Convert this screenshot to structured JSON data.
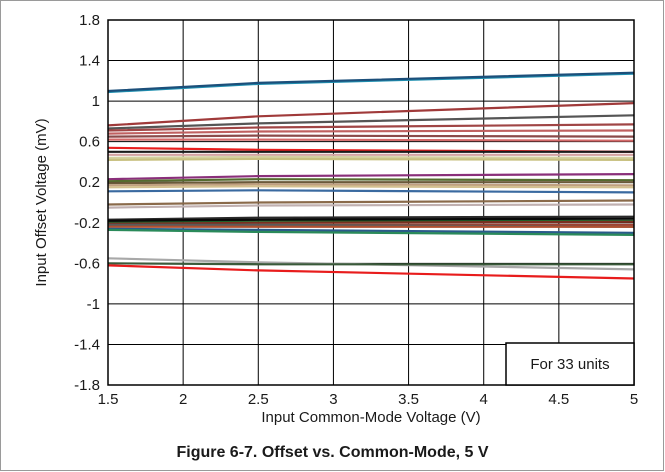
{
  "figure": {
    "caption": "Figure 6-7. Offset vs. Common-Mode, 5 V"
  },
  "chart_data": {
    "type": "line",
    "title": "",
    "xlabel": "Input Common-Mode Voltage (V)",
    "ylabel": "Input Offset Voltage (mV)",
    "xlim": [
      1.5,
      5
    ],
    "ylim": [
      -1.8,
      1.8
    ],
    "x_ticks": [
      1.5,
      2,
      2.5,
      3,
      3.5,
      4,
      4.5,
      5
    ],
    "x_tick_labels": [
      "1.5",
      "2",
      "2.5",
      "3",
      "3.5",
      "4",
      "4.5",
      "5"
    ],
    "y_ticks": [
      1.8,
      1.4,
      1,
      0.6,
      0.2,
      -0.2,
      -0.6,
      -1,
      -1.4,
      -1.8
    ],
    "y_tick_labels": [
      "1.8",
      "1.4",
      "1",
      "0.6",
      "0.2",
      "-0.2",
      "-0.6",
      "-1",
      "-1.4",
      "-1.8"
    ],
    "grid": true,
    "legend": "none",
    "annotation": {
      "text": "For 33 units",
      "placement": "bottom-right"
    },
    "x": [
      1.5,
      2.5,
      5
    ],
    "series": [
      {
        "color": "#1f8fb0",
        "values": [
          1.09,
          1.17,
          1.27
        ]
      },
      {
        "color": "#1c4f7a",
        "values": [
          1.1,
          1.18,
          1.28
        ]
      },
      {
        "color": "#a03a3a",
        "values": [
          0.76,
          0.85,
          0.98
        ]
      },
      {
        "color": "#555555",
        "values": [
          0.73,
          0.78,
          0.86
        ]
      },
      {
        "color": "#a04545",
        "values": [
          0.71,
          0.74,
          0.77
        ]
      },
      {
        "color": "#c06060",
        "values": [
          0.68,
          0.7,
          0.71
        ]
      },
      {
        "color": "#8b4a4a",
        "values": [
          0.65,
          0.66,
          0.65
        ]
      },
      {
        "color": "#d46a6a",
        "values": [
          0.62,
          0.62,
          0.61
        ]
      },
      {
        "color": "#e81c1c",
        "values": [
          0.54,
          0.52,
          0.5
        ]
      },
      {
        "color": "#1a1a1a",
        "values": [
          0.5,
          0.5,
          0.5
        ]
      },
      {
        "color": "#d4a3a3",
        "values": [
          0.47,
          0.47,
          0.47
        ]
      },
      {
        "color": "#d4d0a0",
        "values": [
          0.44,
          0.45,
          0.44
        ]
      },
      {
        "color": "#c8c080",
        "values": [
          0.42,
          0.43,
          0.42
        ]
      },
      {
        "color": "#8a2f7a",
        "values": [
          0.23,
          0.26,
          0.28
        ]
      },
      {
        "color": "#556b2f",
        "values": [
          0.21,
          0.23,
          0.22
        ]
      },
      {
        "color": "#6b5a3a",
        "values": [
          0.19,
          0.2,
          0.2
        ]
      },
      {
        "color": "#c0a080",
        "values": [
          0.17,
          0.18,
          0.17
        ]
      },
      {
        "color": "#d4c090",
        "values": [
          0.15,
          0.16,
          0.15
        ]
      },
      {
        "color": "#3a6aa0",
        "values": [
          0.11,
          0.12,
          0.1
        ]
      },
      {
        "color": "#8a6a4a",
        "values": [
          -0.02,
          0.0,
          0.02
        ]
      },
      {
        "color": "#c0b0b0",
        "values": [
          -0.05,
          -0.03,
          -0.02
        ]
      },
      {
        "color": "#2a2a2a",
        "values": [
          -0.17,
          -0.15,
          -0.14
        ]
      },
      {
        "color": "#1f6b2f",
        "values": [
          -0.19,
          -0.18,
          -0.18
        ]
      },
      {
        "color": "#0a0a0a",
        "values": [
          -0.18,
          -0.17,
          -0.16
        ]
      },
      {
        "color": "#7a3020",
        "values": [
          -0.21,
          -0.2,
          -0.19
        ]
      },
      {
        "color": "#a04030",
        "values": [
          -0.23,
          -0.22,
          -0.22
        ]
      },
      {
        "color": "#5a5a5a",
        "values": [
          -0.22,
          -0.22,
          -0.24
        ]
      },
      {
        "color": "#b05030",
        "values": [
          -0.24,
          -0.24,
          -0.24
        ]
      },
      {
        "color": "#2a5a8a",
        "values": [
          -0.26,
          -0.27,
          -0.3
        ]
      },
      {
        "color": "#2a8a5a",
        "values": [
          -0.27,
          -0.29,
          -0.32
        ]
      },
      {
        "color": "#a8a8a8",
        "values": [
          -0.55,
          -0.59,
          -0.66
        ]
      },
      {
        "color": "#3a5a3a",
        "values": [
          -0.6,
          -0.61,
          -0.61
        ]
      },
      {
        "color": "#e81c1c",
        "values": [
          -0.62,
          -0.67,
          -0.75
        ]
      }
    ]
  }
}
